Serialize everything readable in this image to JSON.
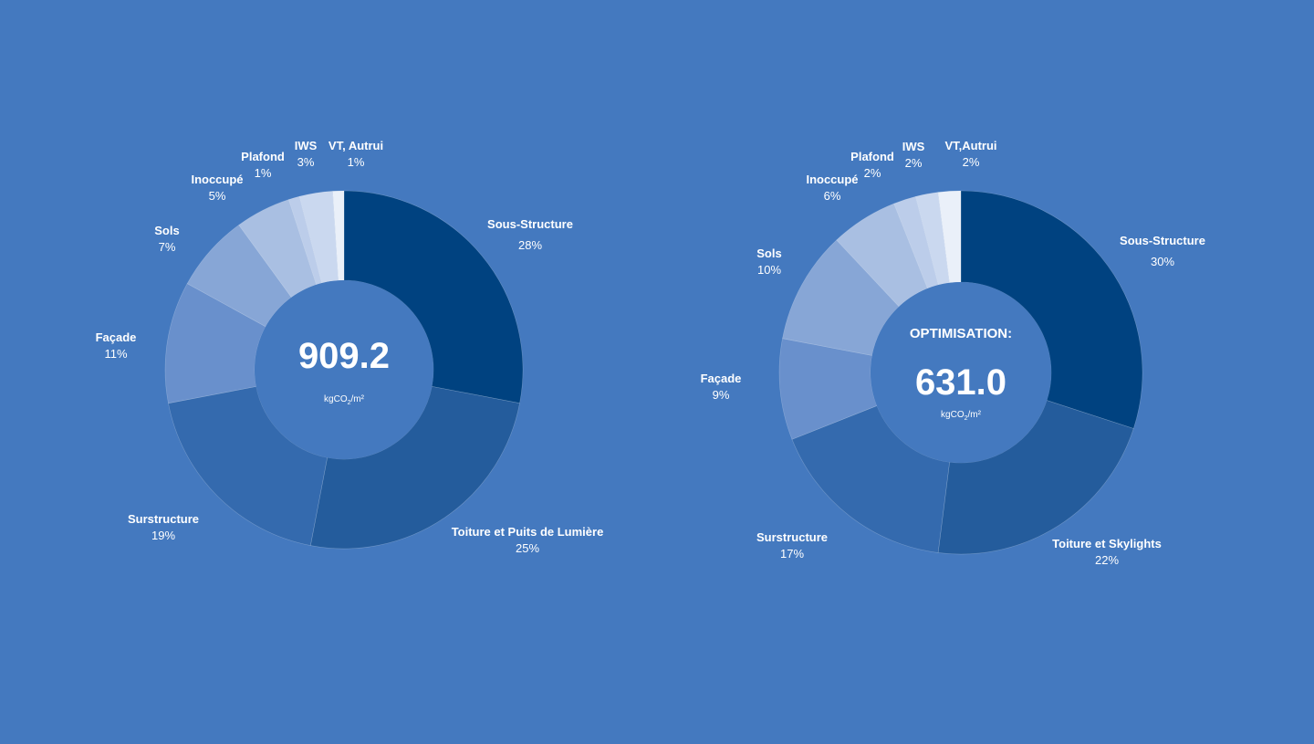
{
  "chart_data": [
    {
      "type": "pie",
      "center_value": "909.2",
      "center_title": "",
      "unit_main": "kgCO",
      "unit_sub": "2",
      "unit_tail": "/m²",
      "slices": [
        {
          "label": "Sous-Structure",
          "value": 28,
          "pct_label": "28%",
          "color": "#004280"
        },
        {
          "label": "Toiture et Puits de Lumière",
          "value": 25,
          "pct_label": "25%",
          "color": "#245c9c"
        },
        {
          "label": "Surstructure",
          "value": 19,
          "pct_label": "19%",
          "color": "#346aae"
        },
        {
          "label": "Façade",
          "value": 11,
          "pct_label": "11%",
          "color": "#6990cc"
        },
        {
          "label": "Sols",
          "value": 7,
          "pct_label": "7%",
          "color": "#87a6d6"
        },
        {
          "label": "Inoccupé",
          "value": 5,
          "pct_label": "5%",
          "color": "#a9bfe2"
        },
        {
          "label": "Plafond",
          "value": 1,
          "pct_label": "1%",
          "color": "#bccdea"
        },
        {
          "label": "IWS",
          "value": 3,
          "pct_label": "3%",
          "color": "#cad8ef"
        },
        {
          "label": "VT, Autrui",
          "value": 1,
          "pct_label": "1%",
          "color": "#eaf0f9"
        }
      ]
    },
    {
      "type": "pie",
      "center_value": "631.0",
      "center_title": "OPTIMISATION:",
      "unit_main": "kgCO",
      "unit_sub": "2",
      "unit_tail": "/m²",
      "slices": [
        {
          "label": "Sous-Structure",
          "value": 30,
          "pct_label": "30%",
          "color": "#004280"
        },
        {
          "label": "Toiture et Skylights",
          "value": 22,
          "pct_label": "22%",
          "color": "#245c9c"
        },
        {
          "label": "Surstructure",
          "value": 17,
          "pct_label": "17%",
          "color": "#346aae"
        },
        {
          "label": "Façade",
          "value": 9,
          "pct_label": "9%",
          "color": "#6990cc"
        },
        {
          "label": "Sols",
          "value": 10,
          "pct_label": "10%",
          "color": "#87a6d6"
        },
        {
          "label": "Inoccupé",
          "value": 6,
          "pct_label": "6%",
          "color": "#a9bfe2"
        },
        {
          "label": "Plafond",
          "value": 2,
          "pct_label": "2%",
          "color": "#bccdea"
        },
        {
          "label": "IWS",
          "value": 2,
          "pct_label": "2%",
          "color": "#cad8ef"
        },
        {
          "label": "VT,Autrui",
          "value": 2,
          "pct_label": "2%",
          "color": "#eaf0f9"
        }
      ]
    }
  ]
}
